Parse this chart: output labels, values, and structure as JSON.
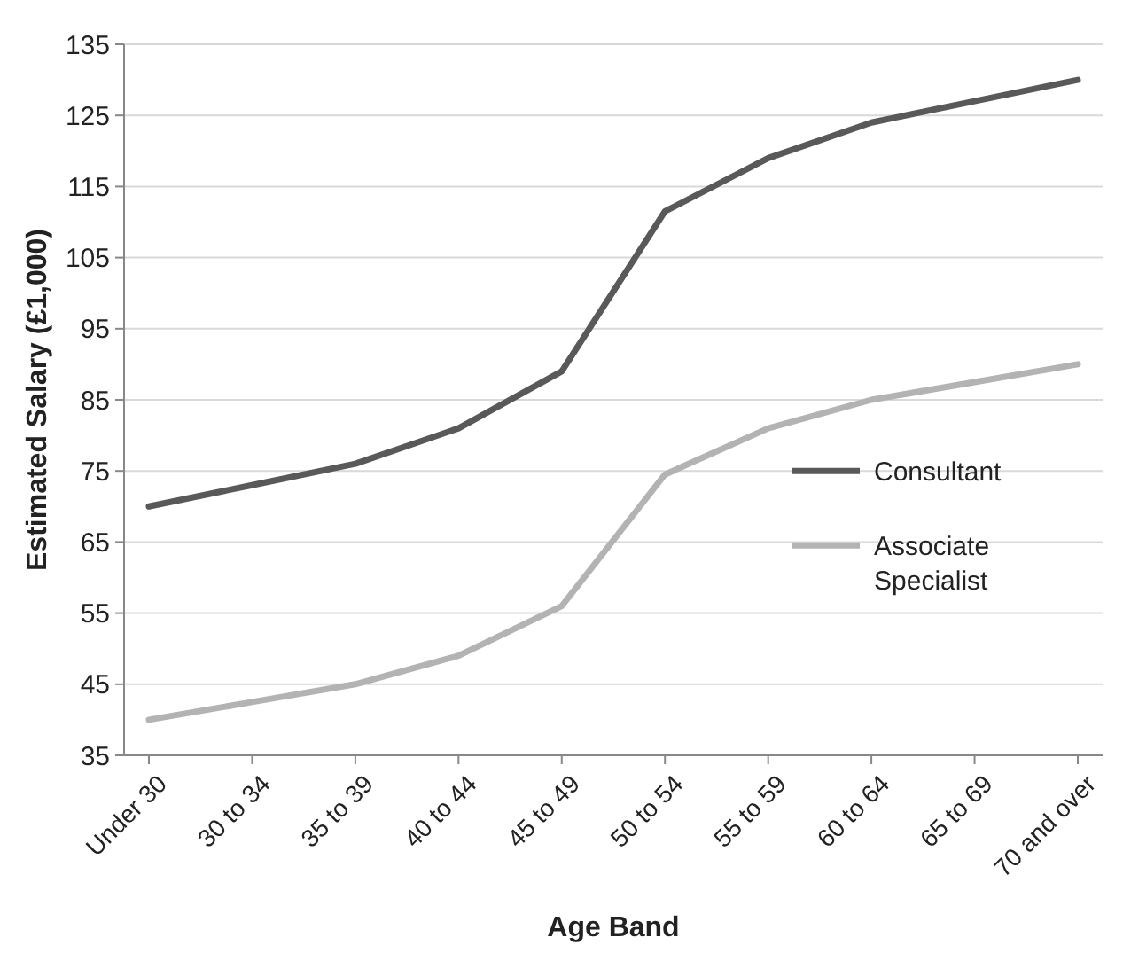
{
  "chart_data": {
    "type": "line",
    "xlabel": "Age Band",
    "ylabel": "Estimated Salary (£1,000)",
    "categories": [
      "Under 30",
      "30 to 34",
      "35 to 39",
      "40 to 44",
      "45 to 49",
      "50 to 54",
      "55 to 59",
      "60 to 64",
      "65 to 69",
      "70 and over"
    ],
    "series": [
      {
        "name": "Consultant",
        "color": "#595959",
        "values": [
          70,
          73,
          76,
          81,
          89,
          111.5,
          119,
          124,
          127,
          130
        ]
      },
      {
        "name": "Associate Specialist",
        "color": "#b3b3b3",
        "values": [
          40,
          42.5,
          45,
          49,
          56,
          74.5,
          81,
          85,
          87.5,
          90
        ]
      }
    ],
    "ylim": [
      35,
      135
    ],
    "yticks": [
      35,
      45,
      55,
      65,
      75,
      85,
      95,
      105,
      115,
      125,
      135
    ],
    "grid": "y",
    "legend": "right",
    "marker": "none",
    "line_style": "solid"
  }
}
